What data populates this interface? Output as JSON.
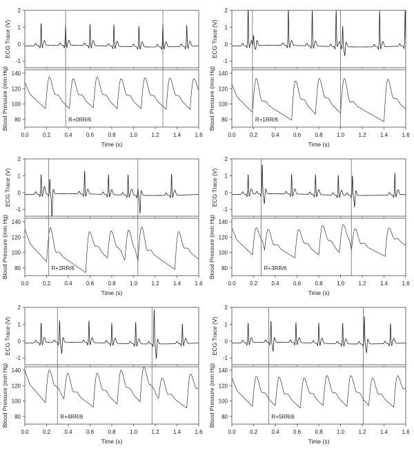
{
  "chart_data": {
    "type": "line",
    "layout": "3 rows x 2 columns of panels, each with ECG trace on top and blood pressure below",
    "xlabel": "Time (s)",
    "xlim": [
      0,
      1.6
    ],
    "xticks": [
      "0.0",
      "0.2",
      "0.4",
      "0.6",
      "0.8",
      "1.0",
      "1.2",
      "1.4",
      "1.6"
    ],
    "ecg": {
      "ylabel": "ECG Trace (V)",
      "ylim": [
        -1.4,
        2
      ],
      "yticks": [
        "-1",
        "0",
        "1",
        "2"
      ],
      "ytick_values": [
        -1,
        0,
        1,
        2
      ]
    },
    "bp": {
      "ylabel": "Blood Pressure (mm Hg)",
      "ylim": [
        70,
        144.5
      ],
      "yticks": [
        "80",
        "100",
        "120",
        "140"
      ],
      "ytick_values": [
        80,
        100,
        120,
        140
      ]
    },
    "panels": [
      {
        "label": "R+0RR/6",
        "markers": [
          0.375,
          1.27
        ],
        "ecg_beats": [
          [
            0.15,
            1.25,
            0
          ],
          [
            0.375,
            1.15,
            0
          ],
          [
            0.6,
            1.2,
            0
          ],
          [
            0.82,
            1.2,
            0
          ],
          [
            1.05,
            1.15,
            0
          ],
          [
            1.27,
            1.3,
            0
          ],
          [
            1.49,
            1.15,
            0
          ]
        ],
        "bp_start": 128,
        "bp_beats": [
          [
            0.19,
            94,
            135
          ],
          [
            0.41,
            94,
            133
          ],
          [
            0.63,
            95,
            135
          ],
          [
            0.85,
            94,
            133
          ],
          [
            1.07,
            94,
            134
          ],
          [
            1.3,
            93,
            134
          ],
          [
            1.52,
            93,
            133
          ]
        ]
      },
      {
        "label": "R+1RR/6",
        "markers": [
          0.19,
          1.0
        ],
        "ecg_beats": [
          [
            0.15,
            2.1,
            0
          ],
          [
            0.2,
            0.5,
            -0.25
          ],
          [
            0.52,
            2.1,
            0
          ],
          [
            0.74,
            2.1,
            0
          ],
          [
            0.96,
            2.1,
            0
          ],
          [
            1.02,
            1.15,
            -0.55
          ],
          [
            1.36,
            2.1,
            0
          ],
          [
            1.595,
            2.1,
            0
          ]
        ],
        "bp_start": 126,
        "bp_beats": [
          [
            0.19,
            89,
            133
          ],
          [
            0.55,
            79,
            130
          ],
          [
            0.77,
            87,
            133
          ],
          [
            1.0,
            88,
            133
          ],
          [
            1.4,
            77,
            132
          ]
        ]
      },
      {
        "label": "R+2RR/6",
        "markers": [
          0.22,
          1.04
        ],
        "ecg_beats": [
          [
            0.15,
            1.1,
            0
          ],
          [
            0.23,
            0.8,
            -1.4
          ],
          [
            0.55,
            1.3,
            0
          ],
          [
            0.77,
            1.1,
            0
          ],
          [
            0.95,
            1.15,
            0
          ],
          [
            1.04,
            0.3,
            -1.1
          ],
          [
            1.35,
            1.2,
            0
          ]
        ],
        "bp_start": 130,
        "bp_beats": [
          [
            0.2,
            88,
            132
          ],
          [
            0.56,
            74,
            127
          ],
          [
            0.76,
            93,
            128
          ],
          [
            0.92,
            90,
            129
          ],
          [
            1.04,
            87,
            133
          ],
          [
            1.38,
            78,
            127
          ]
        ]
      },
      {
        "label": "R+3RR/6",
        "markers": [
          0.27,
          1.1
        ],
        "ecg_beats": [
          [
            0.15,
            1.1,
            0
          ],
          [
            0.28,
            1.7,
            -0.6
          ],
          [
            0.55,
            1.1,
            0
          ],
          [
            0.77,
            1.1,
            0
          ],
          [
            0.98,
            1.1,
            0
          ],
          [
            1.11,
            1.1,
            -0.7
          ],
          [
            1.5,
            1.2,
            0
          ]
        ],
        "bp_start": 132,
        "bp_beats": [
          [
            0.19,
            97,
            132
          ],
          [
            0.3,
            102,
            130
          ],
          [
            0.58,
            93,
            130
          ],
          [
            0.8,
            97,
            135
          ],
          [
            0.99,
            100,
            136
          ],
          [
            1.1,
            102,
            131
          ],
          [
            1.41,
            95,
            132
          ]
        ]
      },
      {
        "label": "R+4RR/6",
        "markers": [
          0.3,
          1.17
        ],
        "ecg_beats": [
          [
            0.15,
            1.1,
            0
          ],
          [
            0.32,
            1.2,
            -0.7
          ],
          [
            0.59,
            1.2,
            0
          ],
          [
            0.8,
            1.1,
            0
          ],
          [
            1.02,
            1.2,
            0
          ],
          [
            1.19,
            2.0,
            -0.9
          ],
          [
            1.45,
            1.1,
            0
          ]
        ],
        "bp_start": 140,
        "bp_beats": [
          [
            0.19,
            98,
            140
          ],
          [
            0.36,
            103,
            136
          ],
          [
            0.63,
            92,
            136
          ],
          [
            0.85,
            96,
            140
          ],
          [
            1.06,
            99,
            144
          ],
          [
            1.23,
            103,
            130
          ],
          [
            1.49,
            91,
            135
          ]
        ]
      },
      {
        "label": "R+5RR/6",
        "markers": [
          0.34,
          1.21
        ],
        "ecg_beats": [
          [
            0.15,
            1.1,
            0
          ],
          [
            0.36,
            1.2,
            -0.55
          ],
          [
            0.59,
            1.1,
            0
          ],
          [
            0.8,
            1.1,
            0
          ],
          [
            1.02,
            1.15,
            0
          ],
          [
            1.22,
            1.55,
            -0.55
          ],
          [
            1.46,
            1.1,
            0
          ]
        ],
        "bp_start": 130,
        "bp_beats": [
          [
            0.19,
            93,
            132
          ],
          [
            0.4,
            94,
            131
          ],
          [
            0.63,
            91,
            130
          ],
          [
            0.84,
            94,
            133
          ],
          [
            1.06,
            93,
            133
          ],
          [
            1.26,
            94,
            130
          ],
          [
            1.49,
            92,
            133
          ]
        ]
      }
    ]
  }
}
